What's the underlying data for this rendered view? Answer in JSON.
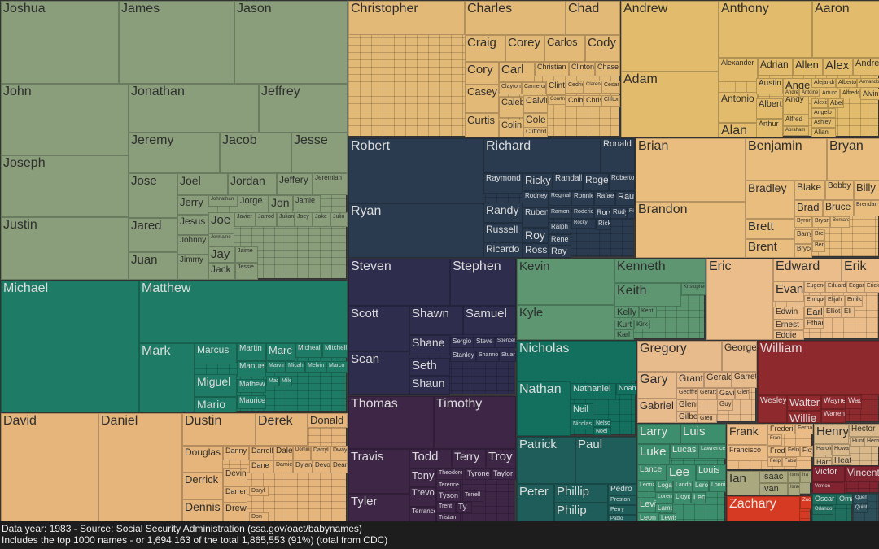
{
  "chart_data": {
    "type": "treemap",
    "title": "",
    "groups": [
      {
        "color": "#8a9e7b",
        "text_color": "#2e2e2e",
        "names": [
          "Joshua",
          "James",
          "Jason",
          "John",
          "Joseph",
          "Justin",
          "Jonathan",
          "Jeffrey",
          "Jeremy",
          "Jacob",
          "Jesse",
          "Jose",
          "Jared",
          "Juan",
          "Joel",
          "Jordan",
          "Jeffery",
          "Jeremiah",
          "Jerry",
          "Johnathan",
          "Jorge",
          "Jon",
          "Jamie",
          "Jesus",
          "Joe",
          "Javier",
          "Jarrod",
          "Julian",
          "Joey",
          "Jake",
          "Julio",
          "Johnny",
          "Jay",
          "Jimmy",
          "Jack",
          "Jaime",
          "Jessie",
          "Jermaine"
        ]
      },
      {
        "color": "#e3b978",
        "text_color": "#2e2e2e",
        "names": [
          "Christopher",
          "Charles",
          "Chad",
          "Craig",
          "Corey",
          "Carlos",
          "Cody",
          "Cory",
          "Carl",
          "Christian",
          "Clinton",
          "Chase",
          "Casey",
          "Curtis",
          "Clayton",
          "Cameron",
          "Clint",
          "Cedric",
          "Clarence",
          "Cesar",
          "Caleb",
          "Colin",
          "Calvin",
          "Cole",
          "Clifford",
          "Courtney",
          "Colby",
          "Chris",
          "Clifton"
        ]
      },
      {
        "color": "#e2bc6c",
        "text_color": "#2e2e2e",
        "names": [
          "Andrew",
          "Anthony",
          "Aaron",
          "Adam",
          "Alexander",
          "Adrian",
          "Allen",
          "Alex",
          "Andre",
          "Antonio",
          "Alan",
          "Austin",
          "Angel",
          "Alejandro",
          "Alberto",
          "Armando",
          "Albert",
          "Arthur",
          "Andy",
          "Andres",
          "Antoine",
          "Arturo",
          "Alfredo",
          "Alvin",
          "Alexis",
          "Abel",
          "Angelo",
          "Alfred",
          "Ashley",
          "Abraham",
          "Allan"
        ]
      },
      {
        "color": "#2a3b4f",
        "text_color": "#dcdcdc",
        "names": [
          "Robert",
          "Ryan",
          "Richard",
          "Ronald",
          "Raymond",
          "Ricky",
          "Randall",
          "Roger",
          "Roberto",
          "Randy",
          "Russell",
          "Ricardo",
          "Rodney",
          "Reginald",
          "Ronnie",
          "Rafael",
          "Raul",
          "Ruben",
          "Roy",
          "Ross",
          "Ramon",
          "Roderick",
          "Rory",
          "Rudy",
          "Rickey",
          "Ralph",
          "Rene",
          "Ray",
          "Rocky",
          "Rick"
        ]
      },
      {
        "color": "#e8bd7e",
        "text_color": "#2e2e2e",
        "names": [
          "Brian",
          "Brandon",
          "Benjamin",
          "Bryan",
          "Bradley",
          "Brett",
          "Brent",
          "Blake",
          "Bobby",
          "Billy",
          "Brad",
          "Bruce",
          "Brendan",
          "Byron",
          "Bryant",
          "Bernard",
          "Barry",
          "Bryce",
          "Bret",
          "Ben"
        ]
      },
      {
        "color": "#1e7b65",
        "text_color": "#dcdcdc",
        "names": [
          "Michael",
          "Matthew",
          "Mark",
          "Marcus",
          "Martin",
          "Marc",
          "Micheal",
          "Mitchell",
          "Manuel",
          "Marvin",
          "Micah",
          "Melvin",
          "Marco",
          "Miguel",
          "Mario",
          "Mathew",
          "Maurice",
          "Max",
          "Miles"
        ]
      },
      {
        "color": "#2e2d4d",
        "text_color": "#dcdcdc",
        "names": [
          "Steven",
          "Stephen",
          "Scott",
          "Sean",
          "Shawn",
          "Samuel",
          "Shane",
          "Seth",
          "Shaun",
          "Sergio",
          "Steve",
          "Spencer",
          "Stanley",
          "Shannon",
          "Stuart"
        ]
      },
      {
        "color": "#5e9672",
        "text_color": "#2e2e2e",
        "names": [
          "Kevin",
          "Kyle",
          "Kenneth",
          "Keith",
          "Kristopher",
          "Kelly",
          "Kurt",
          "Karl",
          "Kirk",
          "Kent"
        ]
      },
      {
        "color": "#eabd8a",
        "text_color": "#2e2e2e",
        "names": [
          "Eric",
          "Edward",
          "Erik",
          "Evan",
          "Eugene",
          "Eduardo",
          "Edgar",
          "Erick",
          "Enrique",
          "Elijah",
          "Emilio",
          "Edwin",
          "Ernest",
          "Eddie",
          "Earl",
          "Ethan",
          "Elliot",
          "Eli"
        ]
      },
      {
        "color": "#13705f",
        "text_color": "#dcdcdc",
        "names": [
          "Nicholas",
          "Nathan",
          "Nathaniel",
          "Noah",
          "Neil",
          "Nicolas",
          "Noel",
          "Nelson"
        ]
      },
      {
        "color": "#e8bb8c",
        "text_color": "#2e2e2e",
        "names": [
          "Gregory",
          "George",
          "Gary",
          "Gabriel",
          "Grant",
          "Gerald",
          "Garrett",
          "Geoffrey",
          "Gerardo",
          "Gavin",
          "Glen",
          "Glenn",
          "Gilbert",
          "Greg",
          "Guy"
        ]
      },
      {
        "color": "#8e2a2e",
        "text_color": "#dcdcdc",
        "names": [
          "William",
          "Wesley",
          "Walter",
          "Willie",
          "Wayne",
          "Wade",
          "Warren"
        ]
      },
      {
        "color": "#e6b57b",
        "text_color": "#2e2e2e",
        "names": [
          "David",
          "Daniel",
          "Dustin",
          "Derek",
          "Donald",
          "Douglas",
          "Derrick",
          "Dennis",
          "Danny",
          "Darrell",
          "Dale",
          "Dominic",
          "Darryl",
          "Dwayne",
          "Dane",
          "Damien",
          "Dylan",
          "Devon",
          "Dean",
          "Devin",
          "Darren",
          "Drew",
          "Daryl",
          "Don"
        ]
      },
      {
        "color": "#3e2647",
        "text_color": "#dcdcdc",
        "names": [
          "Thomas",
          "Timothy",
          "Travis",
          "Tyler",
          "Todd",
          "Terry",
          "Troy",
          "Tony",
          "Trevor",
          "Terrance",
          "Theodore",
          "Tyrone",
          "Taylor",
          "Terence",
          "Tyson",
          "Terrell",
          "Trent",
          "Ty",
          "Tristan"
        ]
      },
      {
        "color": "#1f5d5a",
        "text_color": "#dcdcdc",
        "names": [
          "Patrick",
          "Paul",
          "Peter",
          "Phillip",
          "Philip",
          "Pedro",
          "Preston",
          "Perry",
          "Pablo"
        ]
      },
      {
        "color": "#3d8e6c",
        "text_color": "#e4e4e4",
        "names": [
          "Larry",
          "Luis",
          "Luke",
          "Lucas",
          "Lawrence",
          "Lance",
          "Lee",
          "Louis",
          "Leonard",
          "Logan",
          "Landon",
          "Leroy",
          "Lonnie",
          "Lorenzo",
          "Lloyd",
          "Leo",
          "Levi",
          "Lamar",
          "Leon",
          "Lewis"
        ]
      },
      {
        "color": "#ebbb85",
        "text_color": "#2e2e2e",
        "names": [
          "Frank",
          "Francisco",
          "Frederick",
          "Fernando",
          "Francis",
          "Fred",
          "Felix",
          "Felipe",
          "Fabian",
          "Floyd"
        ]
      },
      {
        "color": "#d9b98c",
        "text_color": "#2e2e2e",
        "names": [
          "Henry",
          "Hector",
          "Harold",
          "Howard",
          "Hunter",
          "Herman",
          "Heath",
          "Harry",
          "Herbert"
        ]
      },
      {
        "color": "#a9a87e",
        "text_color": "#2e2e2e",
        "names": [
          "Ian",
          "Isaac",
          "Ivan",
          "Ismael",
          "Israel",
          "Ira"
        ]
      },
      {
        "color": "#d63a22",
        "text_color": "#f0e6e0",
        "names": [
          "Zachary",
          "Zackary"
        ]
      },
      {
        "color": "#7f2430",
        "text_color": "#dcdcdc",
        "names": [
          "Victor",
          "Vincent",
          "Vernon"
        ]
      },
      {
        "color": "#1f6e5e",
        "text_color": "#dcdcdc",
        "names": [
          "Oscar",
          "Omar",
          "Orlando"
        ]
      },
      {
        "color": "#2d4f5a",
        "text_color": "#dcdcdc",
        "names": [
          "Quentin",
          "Quinton"
        ]
      }
    ]
  },
  "footer": {
    "line1": "Data year: 1983 - Source: Social Security Administration (ssa.gov/oact/babynames)",
    "line2": "Includes the top 1000 names - or 1,694,163 of the total 1,865,553 (91%) (total from CDC)"
  }
}
